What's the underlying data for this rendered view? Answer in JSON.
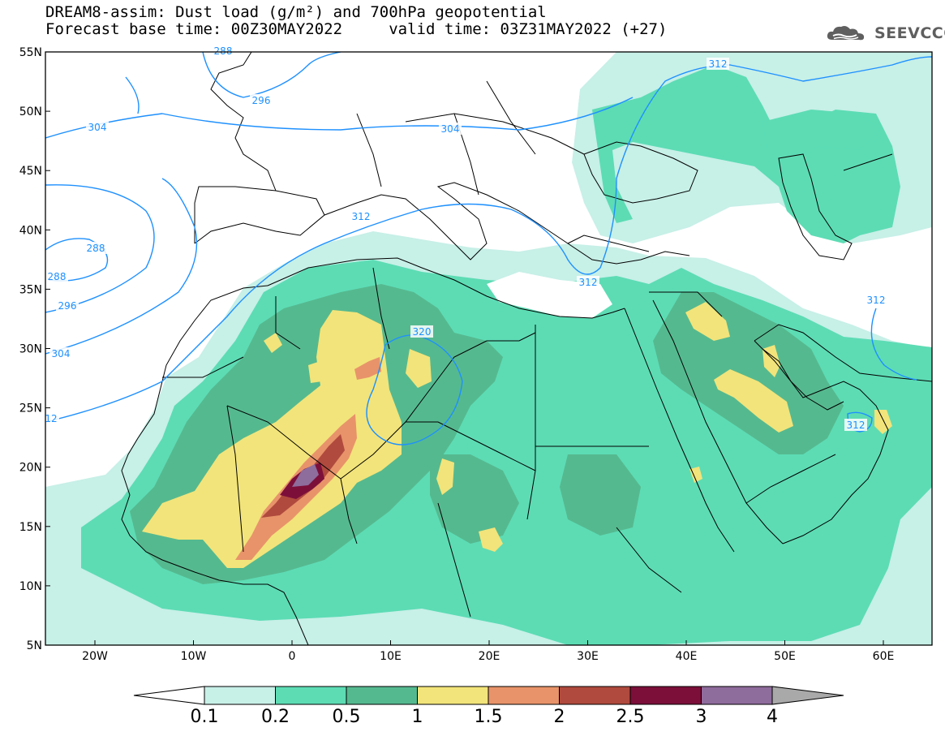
{
  "header": {
    "title": "DREAM8-assim: Dust load (g/m²) and 700hPa geopotential",
    "subtitle": "Forecast base time: 00Z30MAY2022     valid time: 03Z31MAY2022 (+27)"
  },
  "logo": {
    "text": "SEEVCCC",
    "icon": "cloud-icon"
  },
  "map": {
    "lat_labels": [
      "55N",
      "50N",
      "45N",
      "40N",
      "35N",
      "30N",
      "25N",
      "20N",
      "15N",
      "10N",
      "5N"
    ],
    "lon_labels": [
      "20W",
      "10W",
      "0",
      "10E",
      "20E",
      "30E",
      "40E",
      "50E",
      "60E"
    ],
    "contour_labels": [
      "304",
      "296",
      "288",
      "288",
      "296",
      "304",
      "12",
      "304",
      "312",
      "312",
      "320",
      "312",
      "312",
      "312",
      "288"
    ],
    "contour_color": "#1e90ff",
    "coastline_color": "#000000"
  },
  "colorbar": {
    "labels": [
      "0.1",
      "0.2",
      "0.5",
      "1",
      "1.5",
      "2",
      "2.5",
      "3",
      "4"
    ],
    "colors": [
      "#ffffff",
      "#c7f0e7",
      "#5ddcb4",
      "#55b98f",
      "#f2e47a",
      "#e8936a",
      "#b04a3e",
      "#7c0f3a",
      "#8e6c9c",
      "#a9a9a9"
    ]
  }
}
